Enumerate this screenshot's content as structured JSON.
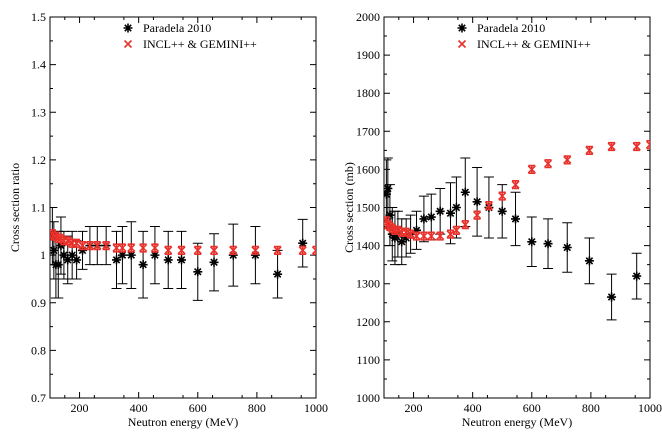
{
  "chart_data": [
    {
      "type": "scatter",
      "title": "",
      "xlabel": "Neutron energy (MeV)",
      "ylabel": "Cross section ratio",
      "xlim": [
        100,
        1000
      ],
      "ylim": [
        0.7,
        1.5
      ],
      "xticks": [
        200,
        400,
        600,
        800,
        1000
      ],
      "yticks": [
        0.7,
        0.8,
        0.9,
        1.0,
        1.1,
        1.2,
        1.3,
        1.4,
        1.5
      ],
      "ytick_labels": [
        "0.7",
        "0.8",
        "0.9",
        "1",
        "1.1",
        "1.2",
        "1.3",
        "1.4",
        "1.5"
      ],
      "grid": false,
      "legend_position": "top-right",
      "series": [
        {
          "name": "Paradela 2010",
          "marker": "asterisk",
          "color": "#000000",
          "x": [
            108,
            113,
            120,
            128,
            137,
            147,
            160,
            175,
            190,
            210,
            235,
            260,
            290,
            325,
            345,
            375,
            415,
            455,
            500,
            545,
            600,
            655,
            720,
            795,
            870,
            955
          ],
          "y": [
            1.04,
            1.01,
            0.98,
            0.98,
            1.02,
            1.0,
            0.99,
            1.0,
            0.99,
            1.01,
            1.02,
            1.02,
            1.02,
            0.99,
            1.0,
            1.0,
            0.98,
            1.0,
            0.99,
            0.99,
            0.965,
            0.985,
            1.0,
            1.0,
            0.96,
            1.025
          ],
          "yerr": [
            0.06,
            0.06,
            0.07,
            0.07,
            0.06,
            0.05,
            0.05,
            0.05,
            0.04,
            0.04,
            0.04,
            0.04,
            0.04,
            0.06,
            0.06,
            0.07,
            0.07,
            0.06,
            0.06,
            0.06,
            0.06,
            0.06,
            0.065,
            0.06,
            0.05,
            0.05
          ]
        },
        {
          "name": "INCL++ & GEMINI++",
          "marker": "cross",
          "color": "#e8312b",
          "x": [
            108,
            113,
            120,
            128,
            137,
            147,
            160,
            175,
            190,
            210,
            235,
            260,
            290,
            325,
            345,
            375,
            415,
            455,
            500,
            545,
            600,
            655,
            720,
            795,
            870,
            955,
            1000
          ],
          "y": [
            1.045,
            1.04,
            1.04,
            1.035,
            1.035,
            1.03,
            1.03,
            1.025,
            1.025,
            1.02,
            1.02,
            1.02,
            1.02,
            1.015,
            1.015,
            1.015,
            1.015,
            1.015,
            1.01,
            1.01,
            1.01,
            1.01,
            1.01,
            1.01,
            1.01,
            1.01,
            1.01
          ],
          "yerr": [
            0.008,
            0.008,
            0.008,
            0.008,
            0.008,
            0.008,
            0.008,
            0.008,
            0.008,
            0.008,
            0.008,
            0.008,
            0.008,
            0.008,
            0.008,
            0.008,
            0.008,
            0.008,
            0.008,
            0.008,
            0.008,
            0.008,
            0.008,
            0.008,
            0.008,
            0.008,
            0.008
          ]
        }
      ]
    },
    {
      "type": "scatter",
      "title": "",
      "xlabel": "Neutron energy (MeV)",
      "ylabel": "Cross section (mb)",
      "xlim": [
        100,
        1000
      ],
      "ylim": [
        1000,
        2000
      ],
      "xticks": [
        200,
        400,
        600,
        800,
        1000
      ],
      "yticks": [
        1000,
        1100,
        1200,
        1300,
        1400,
        1500,
        1600,
        1700,
        1800,
        1900,
        2000
      ],
      "ytick_labels": [
        "1000",
        "1100",
        "1200",
        "1300",
        "1400",
        "1500",
        "1600",
        "1700",
        "1800",
        "1900",
        "2000"
      ],
      "grid": false,
      "legend_position": "top-right",
      "series": [
        {
          "name": "Paradela 2010",
          "marker": "asterisk",
          "color": "#000000",
          "x": [
            108,
            113,
            120,
            128,
            137,
            147,
            160,
            175,
            190,
            210,
            235,
            260,
            290,
            325,
            345,
            375,
            415,
            455,
            500,
            545,
            600,
            655,
            720,
            795,
            870,
            955
          ],
          "y": [
            1535,
            1550,
            1480,
            1430,
            1420,
            1430,
            1410,
            1420,
            1430,
            1440,
            1470,
            1475,
            1490,
            1485,
            1500,
            1540,
            1515,
            1500,
            1490,
            1470,
            1410,
            1405,
            1395,
            1360,
            1265,
            1320
          ],
          "yerr": [
            90,
            80,
            80,
            70,
            70,
            60,
            60,
            50,
            50,
            50,
            60,
            60,
            60,
            80,
            80,
            90,
            90,
            80,
            70,
            70,
            65,
            65,
            65,
            60,
            60,
            60
          ]
        },
        {
          "name": "INCL++ & GEMINI++",
          "marker": "cross",
          "color": "#e8312b",
          "x": [
            108,
            113,
            120,
            128,
            137,
            147,
            160,
            175,
            190,
            210,
            235,
            260,
            290,
            325,
            345,
            375,
            415,
            455,
            500,
            545,
            600,
            655,
            720,
            795,
            870,
            955,
            1000
          ],
          "y": [
            1465,
            1455,
            1450,
            1445,
            1440,
            1440,
            1435,
            1435,
            1430,
            1425,
            1425,
            1425,
            1425,
            1430,
            1440,
            1455,
            1480,
            1505,
            1530,
            1560,
            1600,
            1615,
            1625,
            1650,
            1660,
            1660,
            1665
          ],
          "yerr": [
            10,
            10,
            10,
            10,
            10,
            10,
            10,
            10,
            10,
            10,
            10,
            10,
            10,
            10,
            10,
            10,
            10,
            10,
            10,
            10,
            10,
            10,
            10,
            10,
            10,
            10,
            10
          ]
        }
      ]
    }
  ]
}
